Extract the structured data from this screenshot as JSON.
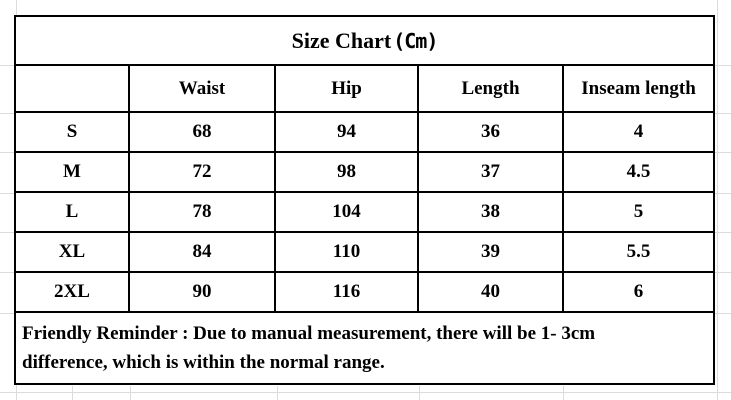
{
  "header": {
    "title_main": "Size Chart",
    "title_unit": "(Cm)"
  },
  "chart_data": {
    "type": "table",
    "title": "Size Chart(Cm)",
    "unit": "Cm",
    "columns": [
      "",
      "Waist",
      "Hip",
      "Length",
      "Inseam length"
    ],
    "rows": [
      [
        "S",
        "68",
        "94",
        "36",
        "4"
      ],
      [
        "M",
        "72",
        "98",
        "37",
        "4.5"
      ],
      [
        "L",
        "78",
        "104",
        "38",
        "5"
      ],
      [
        "XL",
        "84",
        "110",
        "39",
        "5.5"
      ],
      [
        "2XL",
        "90",
        "116",
        "40",
        "6"
      ]
    ],
    "note": "Friendly Reminder : Due to manual measurement, there will be 1- 3cm difference, which is within the normal range."
  },
  "colors": {
    "border": "#000000",
    "text": "#000000",
    "gridline": "#dcdcdc",
    "background": "#ffffff"
  }
}
